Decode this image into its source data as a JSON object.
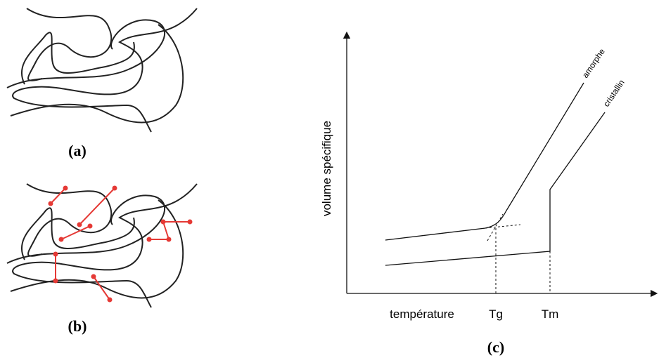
{
  "panel_a": {
    "label": "(a)"
  },
  "panel_b": {
    "label": "(b)"
  },
  "panel_c": {
    "label": "(c)",
    "y_axis_label": "volume spécifique",
    "x_axis_label": "température",
    "tg": "Tg",
    "tm": "Tm",
    "curves": [
      "amorphe",
      "cristallin"
    ]
  }
}
